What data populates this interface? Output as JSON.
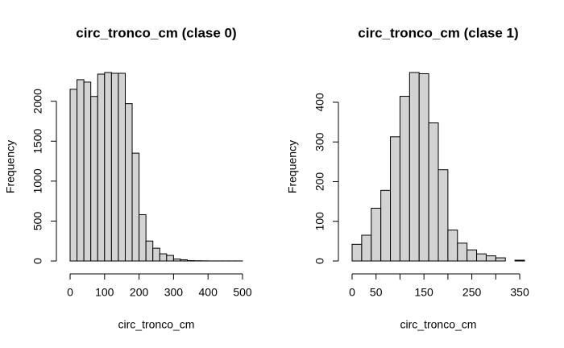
{
  "chart_data": [
    {
      "type": "histogram",
      "title": "circ_tronco_cm (clase 0)",
      "xlabel": "circ_tronco_cm",
      "ylabel": "Frequency",
      "bins": [
        0,
        20,
        40,
        60,
        80,
        100,
        120,
        140,
        160,
        180,
        200,
        220,
        240,
        260,
        280,
        300,
        320,
        340,
        360,
        380,
        400,
        420,
        440,
        460,
        480,
        500
      ],
      "values": [
        2150,
        2270,
        2240,
        2060,
        2340,
        2360,
        2350,
        2350,
        1970,
        1350,
        580,
        250,
        160,
        90,
        70,
        25,
        15,
        5,
        3,
        2,
        1,
        1,
        1,
        1,
        1
      ],
      "color": "#d3d3d3",
      "xlim": [
        0,
        500
      ],
      "ylim": [
        0,
        2360
      ],
      "xticks": [
        0,
        100,
        200,
        300,
        400,
        500
      ],
      "yticks": [
        0,
        500,
        1000,
        1500,
        2000
      ]
    },
    {
      "type": "histogram",
      "title": "circ_tronco_cm (clase 1)",
      "xlabel": "circ_tronco_cm",
      "ylabel": "Frequency",
      "bins": [
        0,
        20,
        40,
        60,
        80,
        100,
        120,
        140,
        160,
        180,
        200,
        220,
        240,
        260,
        280,
        300,
        320,
        340,
        360
      ],
      "values": [
        42,
        65,
        133,
        178,
        313,
        415,
        475,
        472,
        348,
        230,
        78,
        45,
        28,
        18,
        13,
        8,
        0,
        2
      ],
      "color": "#d3d3d3",
      "xlim": [
        0,
        360
      ],
      "ylim": [
        0,
        475
      ],
      "xticks": [
        0,
        50,
        {
          "value": 100,
          "label": null
        },
        150,
        {
          "value": 200,
          "label": null
        },
        250,
        {
          "value": 300,
          "label": null
        },
        350
      ],
      "yticks": [
        0,
        100,
        200,
        300,
        400
      ]
    }
  ]
}
